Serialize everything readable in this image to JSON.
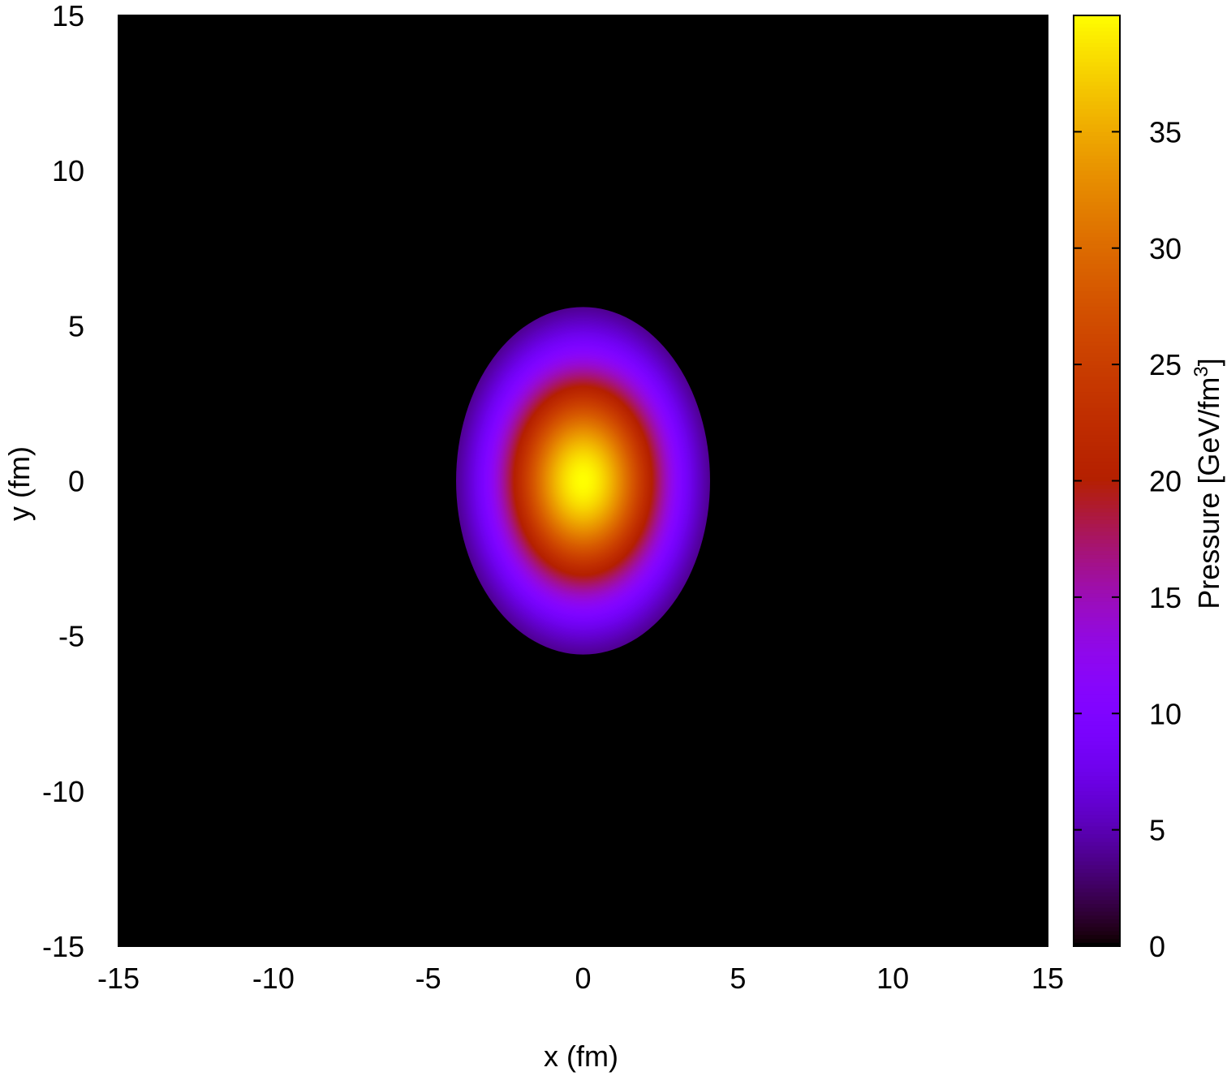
{
  "chart_data": {
    "type": "heatmap",
    "title": "",
    "xlabel": "x (fm)",
    "ylabel": "y (fm)",
    "colorbar_label": "Pressure [GeV/fm",
    "colorbar_label_sup": "3",
    "colorbar_label_close": "]",
    "xlim": [
      -15,
      15
    ],
    "ylim": [
      -15,
      15
    ],
    "zlim": [
      0,
      40
    ],
    "x_ticks": [
      "-15",
      "-10",
      "-5",
      "0",
      "5",
      "10",
      "15"
    ],
    "y_ticks": [
      "-15",
      "-10",
      "-5",
      "0",
      "5",
      "10",
      "15"
    ],
    "colorbar_ticks": [
      "0",
      "5",
      "10",
      "15",
      "20",
      "25",
      "30",
      "35"
    ],
    "field": {
      "shape": "gaussian-ellipse",
      "center": [
        0,
        0
      ],
      "peak": 40,
      "sigma_x": 1.9,
      "sigma_y": 2.75,
      "cutoff_radius_x": 4.1,
      "cutoff_radius_y": 5.6
    },
    "palette": "gnuplot",
    "grid": false
  }
}
